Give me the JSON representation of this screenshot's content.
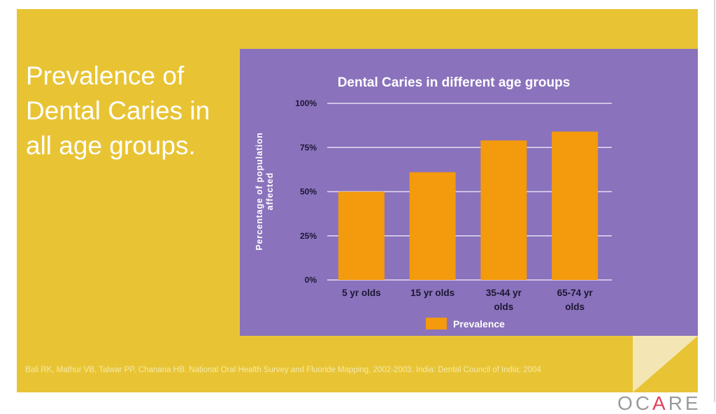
{
  "slide": {
    "title": "Prevalence of Dental Caries in all age groups.",
    "title_lines": [
      "Prevalence of",
      "Dental Caries in",
      "all age groups."
    ],
    "citation": "Bali RK, Mathur VB, Talwar PP, Chanana HB. National Oral Health Survey and Fluoride Mapping, 2002-2003. India: Dental Council of India; 2004",
    "logo": {
      "pre": "OC",
      "accent": "A",
      "post": "RE"
    },
    "colors": {
      "background": "#E8C435",
      "chart_panel": "#8A72BC",
      "bar": "#F39A0D"
    }
  },
  "chart_data": {
    "type": "bar",
    "title": "Dental Caries in different age groups",
    "categories": [
      "5 yr olds",
      "15 yr olds",
      "35-44 yr olds",
      "65-74 yr olds"
    ],
    "category_lines": [
      [
        "5 yr olds"
      ],
      [
        "15 yr olds"
      ],
      [
        "35-44 yr",
        "olds"
      ],
      [
        "65-74 yr",
        "olds"
      ]
    ],
    "series": [
      {
        "name": "Prevalence",
        "values": [
          50,
          61,
          79,
          84
        ]
      }
    ],
    "xlabel": "",
    "ylabel": "Percentage of population affected",
    "ylabel_lines": [
      "Percentage of population",
      "affected"
    ],
    "ylim": [
      0,
      100
    ],
    "yticks": [
      0,
      25,
      50,
      75,
      100
    ],
    "ytick_labels": [
      "0%",
      "25%",
      "50%",
      "75%",
      "100%"
    ],
    "grid": true,
    "legend": {
      "position": "bottom",
      "entries": [
        "Prevalence"
      ]
    }
  }
}
